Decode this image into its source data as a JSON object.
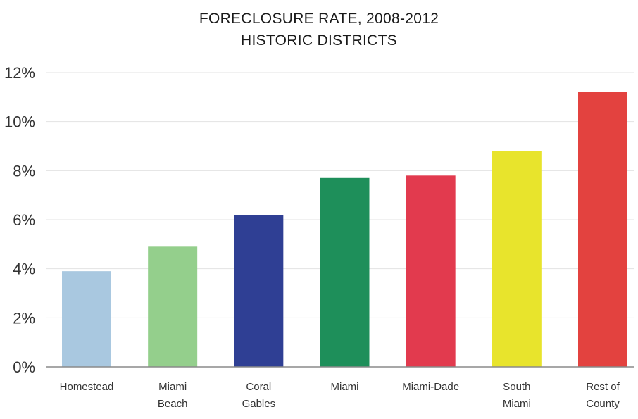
{
  "chart_data": {
    "type": "bar",
    "title": "FORECLOSURE RATE, 2008-2012",
    "subtitle": "HISTORIC DISTRICTS",
    "xlabel": "",
    "ylabel": "",
    "ylim": [
      0,
      12
    ],
    "y_ticks": [
      0,
      2,
      4,
      6,
      8,
      10,
      12
    ],
    "y_tick_labels": [
      "0%",
      "2%",
      "4%",
      "6%",
      "8%",
      "10%",
      "12%"
    ],
    "grid": true,
    "categories": [
      [
        "Homestead"
      ],
      [
        "Miami",
        "Beach"
      ],
      [
        "Coral",
        "Gables"
      ],
      [
        "Miami"
      ],
      [
        "Miami-Dade"
      ],
      [
        "South",
        "Miami"
      ],
      [
        "Rest of",
        "County"
      ]
    ],
    "values": [
      3.9,
      4.9,
      6.2,
      7.7,
      7.8,
      8.8,
      11.2
    ],
    "colors": [
      "#a9c8e0",
      "#94cf8c",
      "#2f3f94",
      "#1e8f5a",
      "#e23a4e",
      "#e8e42c",
      "#e3423f"
    ]
  }
}
